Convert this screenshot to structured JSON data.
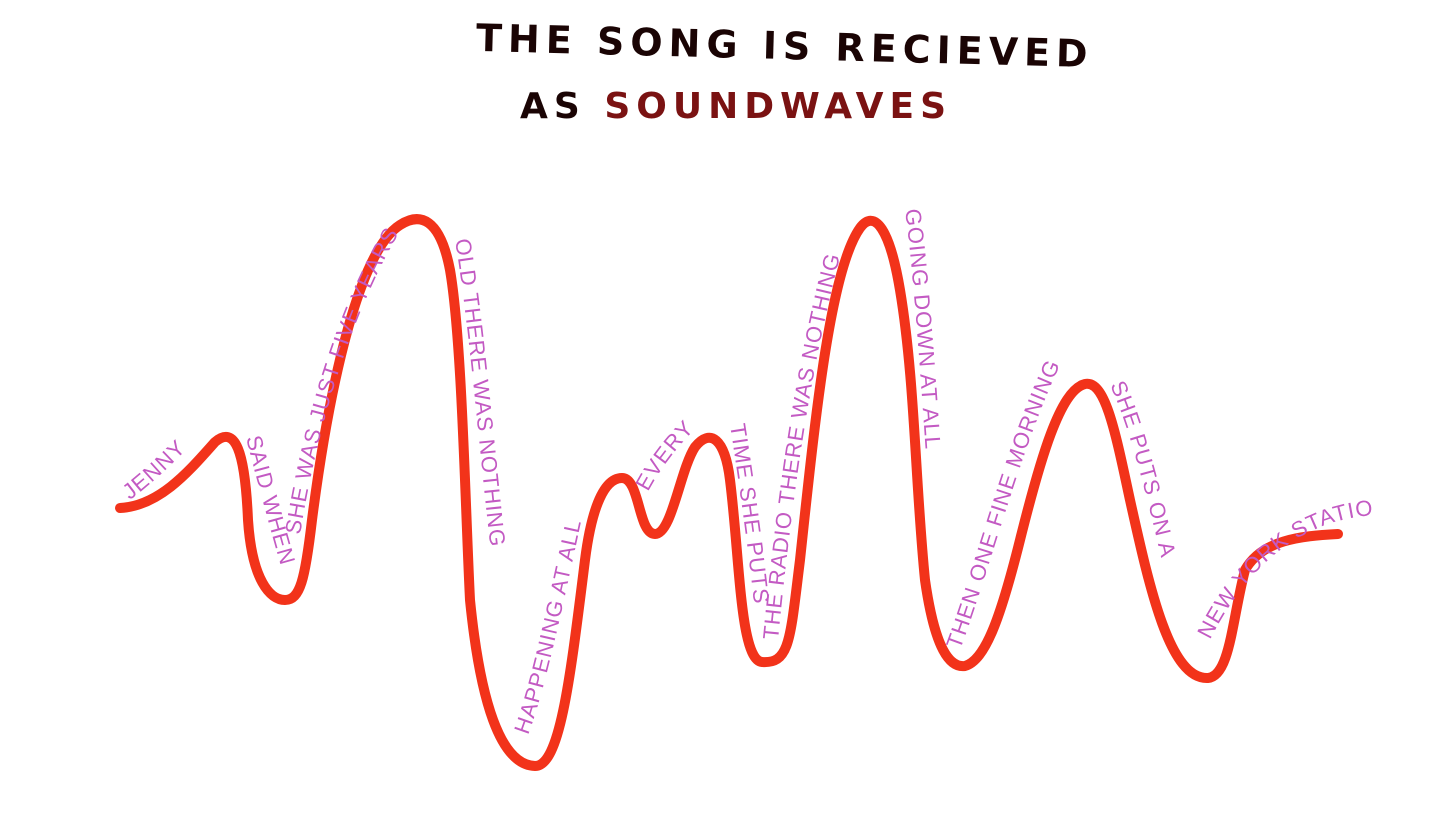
{
  "title": {
    "line1": "THE SONG IS RECIEVED",
    "line2_prefix": "AS",
    "line2_accent": "SOUNDWAVES"
  },
  "colors": {
    "ink": "#1a0404",
    "accent_ink": "#7a1212",
    "wave": "#f2331a",
    "lyric": "#c35ac3"
  },
  "lyrics": [
    "JENNY",
    "SAID WHEN",
    "SHE WAS JUST FIVE YEARS",
    "OLD THERE WAS NOTHING",
    "HAPPENING AT ALL",
    "EVERY",
    "TIME SHE PUTS ON",
    "THE RADIO THERE WAS NOTHING",
    "GOING DOWN AT ALL",
    "THEN ONE FINE MORNING,",
    "SHE PUTS ON A",
    "NEW YORK STATION."
  ]
}
